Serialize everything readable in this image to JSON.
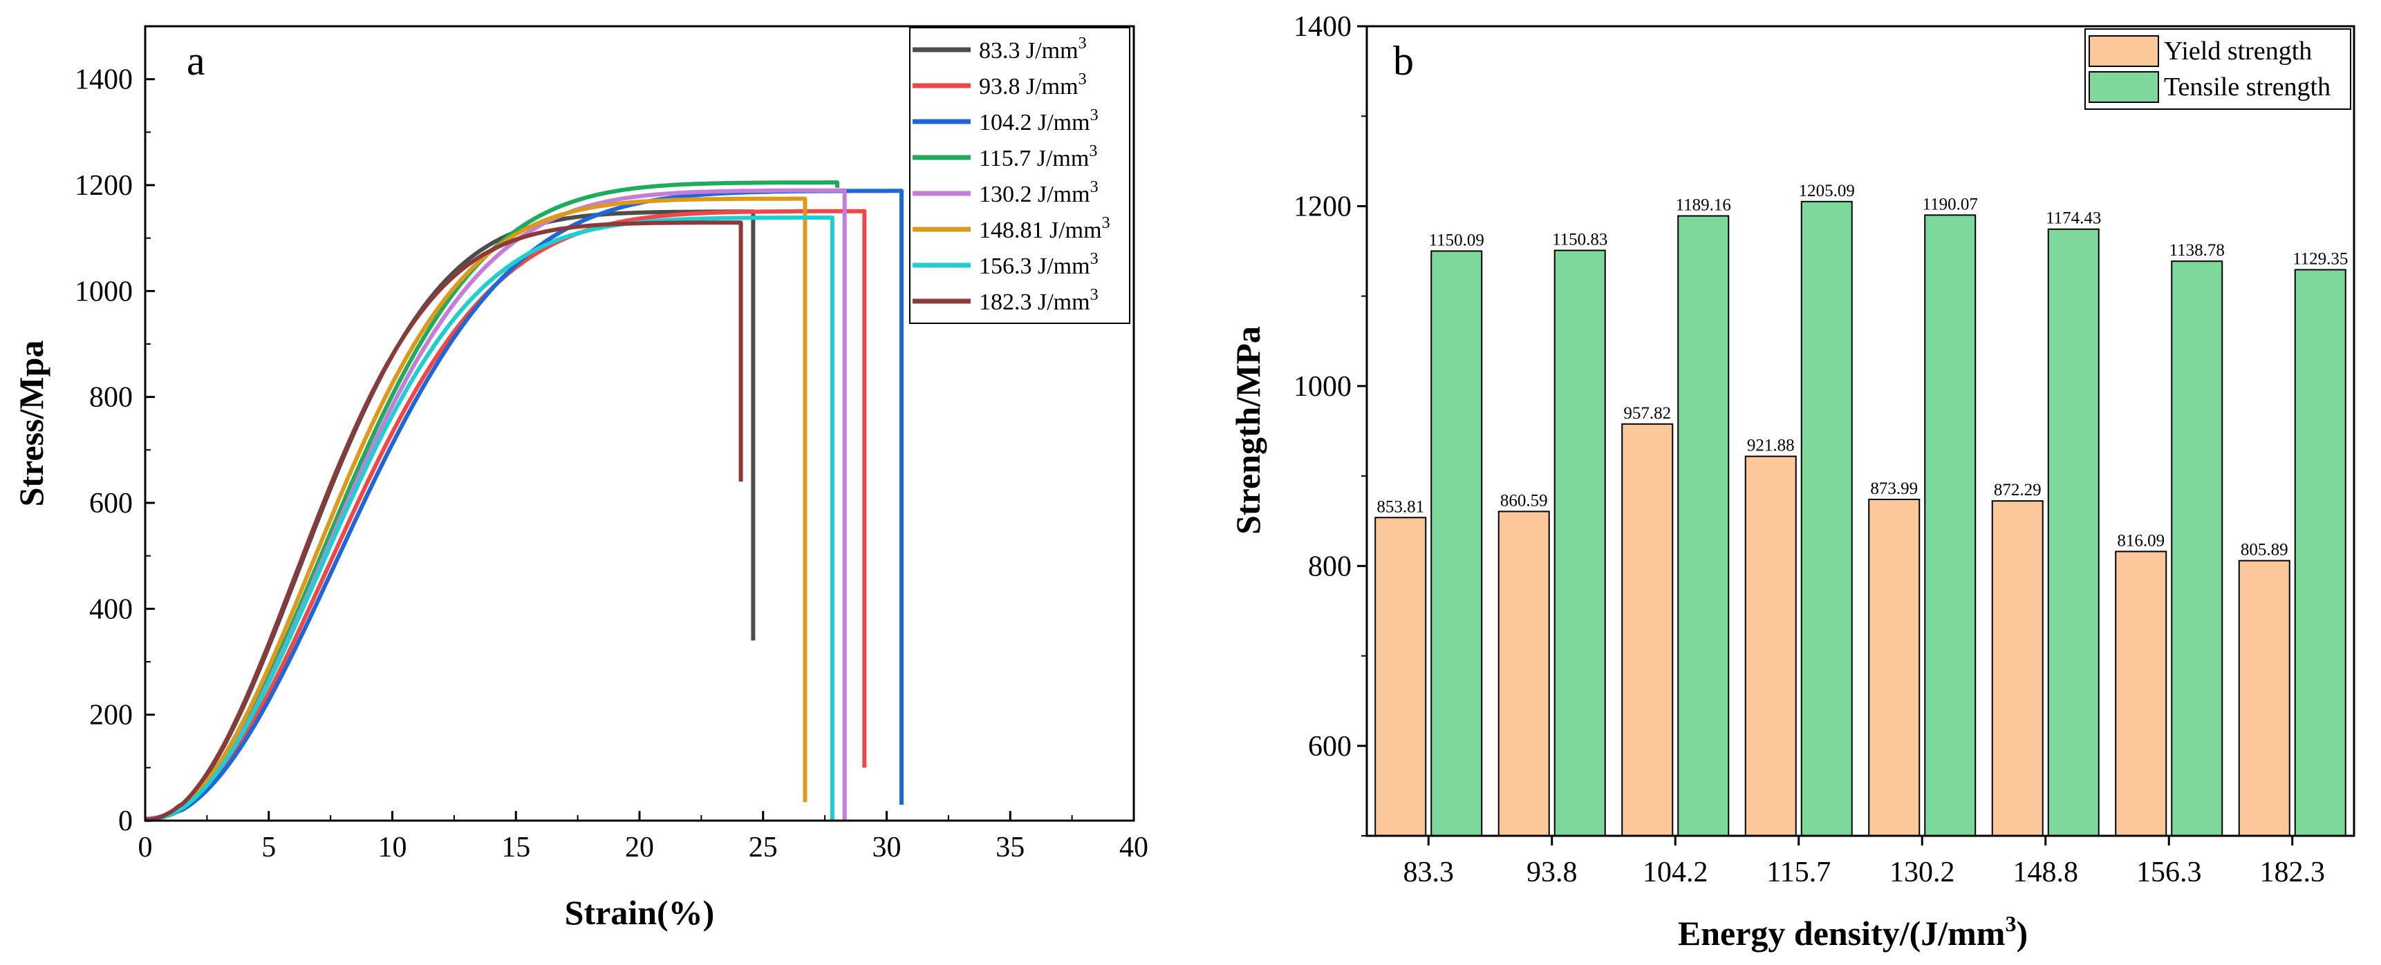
{
  "chart_data": [
    {
      "type": "line",
      "panel_label": "a",
      "xlabel": "Strain(%)",
      "ylabel": "Stress/Mpa",
      "xlim": [
        0,
        40
      ],
      "ylim": [
        0,
        1500
      ],
      "xticks": [
        "0",
        "5",
        "10",
        "15",
        "20",
        "25",
        "30",
        "35",
        "40"
      ],
      "yticks": [
        "0",
        "200",
        "400",
        "600",
        "800",
        "1000",
        "1200",
        "1400"
      ],
      "legend_position": "top-right",
      "series": [
        {
          "name": "83.3 J/mm",
          "sup": "3",
          "color": "#4d4d4d",
          "E": [
            2,
            115,
            148
          ],
          "fail": 24.6,
          "end": 340
        },
        {
          "name": "93.8 J/mm",
          "sup": "3",
          "color": "#f04848",
          "E": [
            3,
            98,
            115
          ],
          "fail": 29.1,
          "end": 100
        },
        {
          "name": "104.2 J/mm",
          "sup": "3",
          "color": "#1f66d6",
          "E": [
            2,
            110,
            125
          ],
          "fail": 30.6,
          "end": 30
        },
        {
          "name": "115.7 J/mm",
          "sup": "3",
          "color": "#1faa5c",
          "E": [
            1,
            118,
            155
          ],
          "fail": 28.0,
          "end": 1195
        },
        {
          "name": "130.2 J/mm",
          "sup": "3",
          "color": "#c27ed9",
          "E": [
            4,
            100,
            140
          ],
          "fail": 28.3,
          "end": 0
        },
        {
          "name": "148.81 J/mm",
          "sup": "3",
          "color": "#dd9a1a",
          "E": [
            2,
            112,
            148
          ],
          "fail": 26.7,
          "end": 35
        },
        {
          "name": "156.3 J/mm",
          "sup": "3",
          "color": "#1fcfcf",
          "E": [
            1,
            118,
            145
          ],
          "fail": 27.8,
          "end": 0
        },
        {
          "name": "182.3 J/mm",
          "sup": "3",
          "color": "#8b3a3a",
          "E": [
            2,
            114,
            148
          ],
          "fail": 24.1,
          "end": 640
        }
      ],
      "uts": [
        1150.09,
        1150.83,
        1189.16,
        1205.09,
        1190.07,
        1174.43,
        1138.78,
        1129.35
      ]
    },
    {
      "type": "bar",
      "panel_label": "b",
      "xlabel": "Energy density/(J/mm",
      "xlabel_sup": "3",
      "xlabel_end": ")",
      "ylabel": "Strength/MPa",
      "ylim": [
        500,
        1400
      ],
      "yticks": [
        "600",
        "800",
        "1000",
        "1200",
        "1400"
      ],
      "categories": [
        "83.3",
        "93.8",
        "104.2",
        "115.7",
        "130.2",
        "148.8",
        "156.3",
        "182.3"
      ],
      "legend_position": "top-right",
      "series": [
        {
          "name": "Yield strength",
          "color": "#fcc89a",
          "values": [
            853.81,
            860.59,
            957.82,
            921.88,
            873.99,
            872.29,
            816.09,
            805.89
          ],
          "labels": [
            "853.81",
            "860.59",
            "957.82",
            "921.88",
            "873.99",
            "872.29",
            "816.09",
            "805.89"
          ]
        },
        {
          "name": "Tensile strength",
          "color": "#7dd89b",
          "values": [
            1150.09,
            1150.83,
            1189.16,
            1205.09,
            1190.07,
            1174.43,
            1138.78,
            1129.35
          ],
          "labels": [
            "1150.09",
            "1150.83",
            "1189.16",
            "1205.09",
            "1190.07",
            "1174.43",
            "1138.78",
            "1129.35"
          ]
        }
      ]
    }
  ]
}
